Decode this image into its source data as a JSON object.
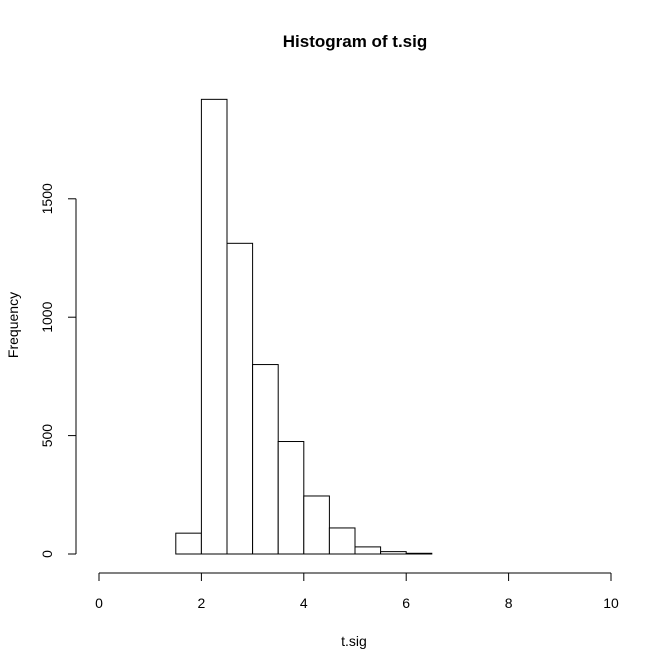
{
  "chart_data": {
    "type": "bar",
    "title": "Histogram of t.sig",
    "xlabel": "t.sig",
    "ylabel": "Frequency",
    "xlim": [
      0,
      10
    ],
    "ylim": [
      0,
      1920
    ],
    "x_ticks": [
      "0",
      "2",
      "4",
      "6",
      "8",
      "10"
    ],
    "y_ticks": [
      "0",
      "500",
      "1000",
      "1500"
    ],
    "bin_edges": [
      1.5,
      2.0,
      2.5,
      3.0,
      3.5,
      4.0,
      4.5,
      5.0,
      5.5,
      6.0,
      6.5
    ],
    "values": [
      88,
      1920,
      1312,
      800,
      475,
      245,
      110,
      30,
      10,
      3
    ],
    "grid": false,
    "legend": "none"
  }
}
